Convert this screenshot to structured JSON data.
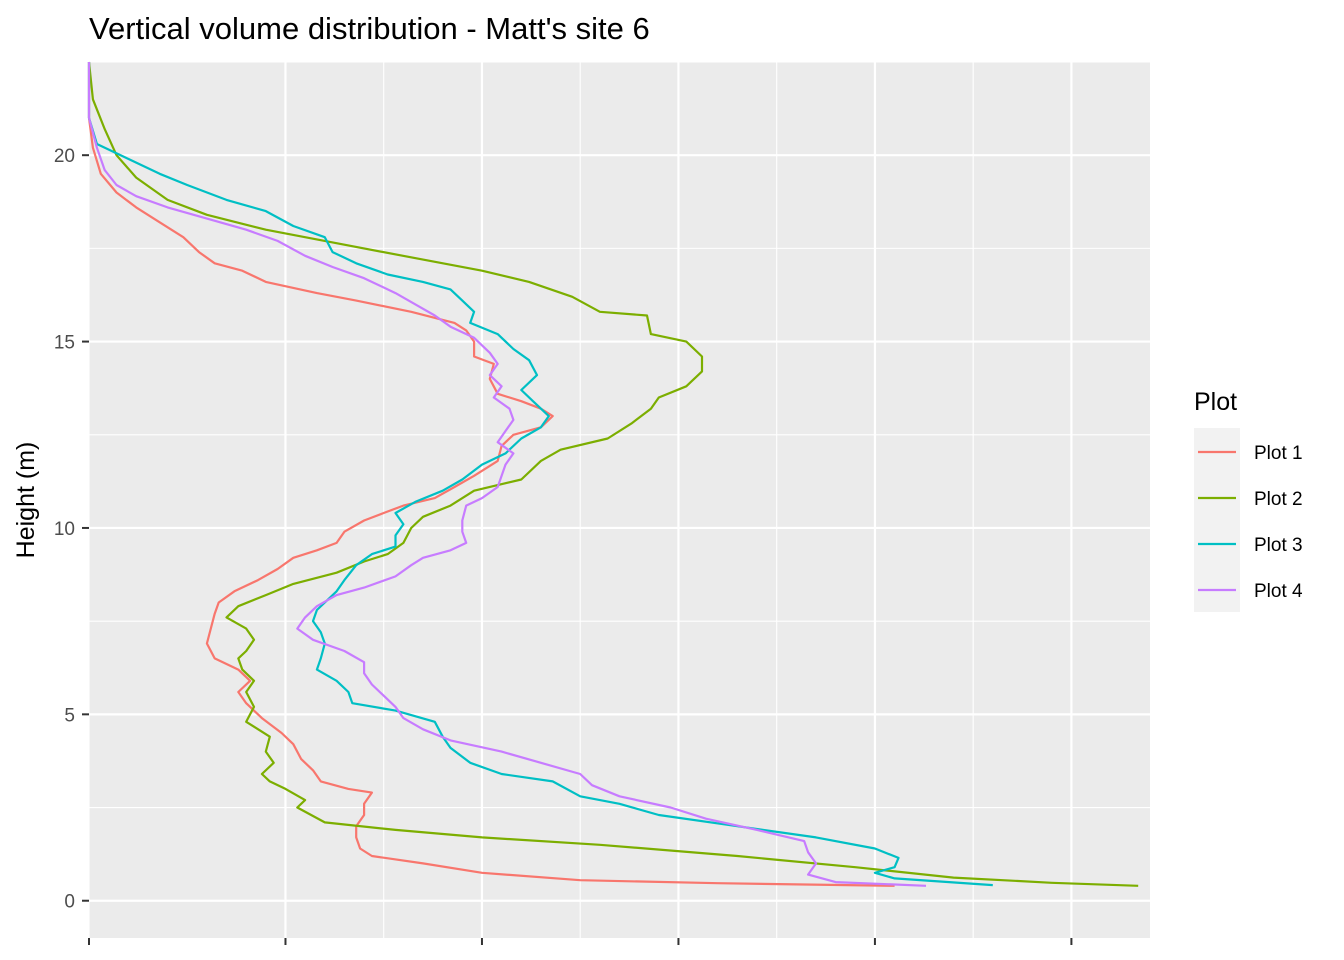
{
  "chart_data": {
    "type": "line",
    "orientation": "horizontal-profile",
    "title": "Vertical volume distribution - Matt's site 6",
    "xlabel": "",
    "ylabel": "Height (m)",
    "x_tick_labels_shown": false,
    "xlim": [
      0,
      0.027
    ],
    "ylim": [
      -1.0,
      22.5
    ],
    "y_ticks": [
      0,
      5,
      10,
      15,
      20
    ],
    "y_tick_labels": [
      "0",
      "5",
      "10",
      "15",
      "20"
    ],
    "x_grid_major": [
      0.005,
      0.01,
      0.015,
      0.02,
      0.025
    ],
    "x_grid_minor": [
      0.0,
      0.0075,
      0.0125,
      0.0175,
      0.0225
    ],
    "grid": true,
    "legend": {
      "title": "Plot",
      "placement": "right"
    },
    "series": [
      {
        "name": "Plot 1",
        "color": "#F8766D",
        "points": [
          [
            0.0,
            22.5
          ],
          [
            0.0,
            21.0
          ],
          [
            0.0001,
            20.2
          ],
          [
            0.0003,
            19.5
          ],
          [
            0.0007,
            19.0
          ],
          [
            0.0012,
            18.6
          ],
          [
            0.0018,
            18.2
          ],
          [
            0.0024,
            17.8
          ],
          [
            0.0028,
            17.4
          ],
          [
            0.0032,
            17.1
          ],
          [
            0.0039,
            16.9
          ],
          [
            0.0045,
            16.6
          ],
          [
            0.0058,
            16.3
          ],
          [
            0.0068,
            16.1
          ],
          [
            0.0082,
            15.8
          ],
          [
            0.0093,
            15.5
          ],
          [
            0.0096,
            15.3
          ],
          [
            0.0098,
            15.0
          ],
          [
            0.0098,
            14.6
          ],
          [
            0.0103,
            14.4
          ],
          [
            0.0102,
            14.0
          ],
          [
            0.0104,
            13.6
          ],
          [
            0.011,
            13.4
          ],
          [
            0.0115,
            13.2
          ],
          [
            0.0118,
            13.0
          ],
          [
            0.0115,
            12.7
          ],
          [
            0.0108,
            12.5
          ],
          [
            0.0105,
            12.2
          ],
          [
            0.0104,
            11.8
          ],
          [
            0.0098,
            11.4
          ],
          [
            0.0093,
            11.1
          ],
          [
            0.0088,
            10.8
          ],
          [
            0.008,
            10.6
          ],
          [
            0.0075,
            10.4
          ],
          [
            0.007,
            10.2
          ],
          [
            0.0065,
            9.9
          ],
          [
            0.0063,
            9.6
          ],
          [
            0.0058,
            9.4
          ],
          [
            0.0052,
            9.2
          ],
          [
            0.0048,
            8.9
          ],
          [
            0.0043,
            8.6
          ],
          [
            0.0037,
            8.3
          ],
          [
            0.0033,
            8.0
          ],
          [
            0.0032,
            7.7
          ],
          [
            0.0031,
            7.3
          ],
          [
            0.003,
            6.9
          ],
          [
            0.0032,
            6.5
          ],
          [
            0.0038,
            6.2
          ],
          [
            0.0041,
            5.9
          ],
          [
            0.0038,
            5.6
          ],
          [
            0.004,
            5.3
          ],
          [
            0.0044,
            4.9
          ],
          [
            0.0049,
            4.5
          ],
          [
            0.0052,
            4.2
          ],
          [
            0.0054,
            3.8
          ],
          [
            0.0057,
            3.5
          ],
          [
            0.0059,
            3.2
          ],
          [
            0.0066,
            3.0
          ],
          [
            0.0072,
            2.9
          ],
          [
            0.007,
            2.6
          ],
          [
            0.007,
            2.3
          ],
          [
            0.0068,
            2.0
          ],
          [
            0.0068,
            1.7
          ],
          [
            0.0069,
            1.4
          ],
          [
            0.0072,
            1.2
          ],
          [
            0.0085,
            1.0
          ],
          [
            0.01,
            0.75
          ],
          [
            0.0125,
            0.55
          ],
          [
            0.016,
            0.47
          ],
          [
            0.0205,
            0.4
          ]
        ]
      },
      {
        "name": "Plot 2",
        "color": "#7CAE00",
        "points": [
          [
            0.0,
            22.5
          ],
          [
            0.0001,
            21.5
          ],
          [
            0.0004,
            20.7
          ],
          [
            0.0007,
            20.0
          ],
          [
            0.0012,
            19.4
          ],
          [
            0.002,
            18.8
          ],
          [
            0.003,
            18.4
          ],
          [
            0.0045,
            18.0
          ],
          [
            0.0065,
            17.6
          ],
          [
            0.0085,
            17.2
          ],
          [
            0.01,
            16.9
          ],
          [
            0.0112,
            16.6
          ],
          [
            0.0123,
            16.2
          ],
          [
            0.013,
            15.8
          ],
          [
            0.0142,
            15.7
          ],
          [
            0.0143,
            15.2
          ],
          [
            0.0152,
            15.0
          ],
          [
            0.0156,
            14.6
          ],
          [
            0.0156,
            14.2
          ],
          [
            0.0152,
            13.8
          ],
          [
            0.0145,
            13.5
          ],
          [
            0.0143,
            13.2
          ],
          [
            0.0138,
            12.8
          ],
          [
            0.0132,
            12.4
          ],
          [
            0.012,
            12.1
          ],
          [
            0.0115,
            11.8
          ],
          [
            0.011,
            11.3
          ],
          [
            0.0098,
            11.0
          ],
          [
            0.0092,
            10.6
          ],
          [
            0.0085,
            10.3
          ],
          [
            0.0082,
            10.0
          ],
          [
            0.008,
            9.6
          ],
          [
            0.0076,
            9.3
          ],
          [
            0.007,
            9.1
          ],
          [
            0.0063,
            8.8
          ],
          [
            0.0052,
            8.5
          ],
          [
            0.0045,
            8.2
          ],
          [
            0.0038,
            7.9
          ],
          [
            0.0035,
            7.6
          ],
          [
            0.004,
            7.3
          ],
          [
            0.0042,
            7.0
          ],
          [
            0.004,
            6.7
          ],
          [
            0.0038,
            6.5
          ],
          [
            0.0039,
            6.2
          ],
          [
            0.0042,
            5.9
          ],
          [
            0.004,
            5.6
          ],
          [
            0.0042,
            5.2
          ],
          [
            0.004,
            4.8
          ],
          [
            0.0046,
            4.4
          ],
          [
            0.0045,
            4.0
          ],
          [
            0.0047,
            3.7
          ],
          [
            0.0044,
            3.4
          ],
          [
            0.0046,
            3.2
          ],
          [
            0.005,
            3.0
          ],
          [
            0.0055,
            2.7
          ],
          [
            0.0053,
            2.5
          ],
          [
            0.006,
            2.1
          ],
          [
            0.0078,
            1.9
          ],
          [
            0.01,
            1.7
          ],
          [
            0.013,
            1.5
          ],
          [
            0.0165,
            1.2
          ],
          [
            0.0195,
            0.9
          ],
          [
            0.022,
            0.62
          ],
          [
            0.0245,
            0.48
          ],
          [
            0.0267,
            0.4
          ]
        ]
      },
      {
        "name": "Plot 3",
        "color": "#00BFC4",
        "points": [
          [
            0.0,
            22.5
          ],
          [
            0.0,
            21.0
          ],
          [
            0.0002,
            20.3
          ],
          [
            0.001,
            19.9
          ],
          [
            0.0018,
            19.5
          ],
          [
            0.0025,
            19.2
          ],
          [
            0.0035,
            18.8
          ],
          [
            0.0045,
            18.5
          ],
          [
            0.0052,
            18.1
          ],
          [
            0.006,
            17.8
          ],
          [
            0.0062,
            17.4
          ],
          [
            0.0068,
            17.1
          ],
          [
            0.0076,
            16.8
          ],
          [
            0.0085,
            16.6
          ],
          [
            0.0092,
            16.4
          ],
          [
            0.0095,
            16.1
          ],
          [
            0.0098,
            15.8
          ],
          [
            0.0097,
            15.5
          ],
          [
            0.0104,
            15.2
          ],
          [
            0.0108,
            14.8
          ],
          [
            0.0112,
            14.5
          ],
          [
            0.0114,
            14.1
          ],
          [
            0.011,
            13.7
          ],
          [
            0.0113,
            13.4
          ],
          [
            0.0117,
            13.0
          ],
          [
            0.0115,
            12.7
          ],
          [
            0.011,
            12.4
          ],
          [
            0.0106,
            12.0
          ],
          [
            0.01,
            11.7
          ],
          [
            0.0095,
            11.3
          ],
          [
            0.009,
            11.0
          ],
          [
            0.0083,
            10.7
          ],
          [
            0.0078,
            10.4
          ],
          [
            0.008,
            10.1
          ],
          [
            0.0078,
            9.8
          ],
          [
            0.0078,
            9.5
          ],
          [
            0.0072,
            9.3
          ],
          [
            0.0068,
            9.0
          ],
          [
            0.0065,
            8.6
          ],
          [
            0.0063,
            8.3
          ],
          [
            0.006,
            8.0
          ],
          [
            0.0058,
            7.8
          ],
          [
            0.0057,
            7.5
          ],
          [
            0.0059,
            7.2
          ],
          [
            0.006,
            6.9
          ],
          [
            0.0059,
            6.5
          ],
          [
            0.0058,
            6.2
          ],
          [
            0.0063,
            5.9
          ],
          [
            0.0066,
            5.6
          ],
          [
            0.0067,
            5.3
          ],
          [
            0.0078,
            5.1
          ],
          [
            0.0088,
            4.8
          ],
          [
            0.009,
            4.4
          ],
          [
            0.0092,
            4.1
          ],
          [
            0.0097,
            3.7
          ],
          [
            0.0105,
            3.4
          ],
          [
            0.0118,
            3.2
          ],
          [
            0.0125,
            2.8
          ],
          [
            0.0135,
            2.6
          ],
          [
            0.0145,
            2.3
          ],
          [
            0.0165,
            2.0
          ],
          [
            0.0185,
            1.7
          ],
          [
            0.02,
            1.4
          ],
          [
            0.0206,
            1.15
          ],
          [
            0.0205,
            0.9
          ],
          [
            0.02,
            0.75
          ],
          [
            0.0205,
            0.6
          ],
          [
            0.023,
            0.42
          ]
        ]
      },
      {
        "name": "Plot 4",
        "color": "#C77CFF",
        "points": [
          [
            0.0,
            22.5
          ],
          [
            0.0,
            21.0
          ],
          [
            0.0002,
            20.2
          ],
          [
            0.0004,
            19.6
          ],
          [
            0.0007,
            19.2
          ],
          [
            0.0012,
            18.9
          ],
          [
            0.002,
            18.6
          ],
          [
            0.003,
            18.3
          ],
          [
            0.004,
            18.0
          ],
          [
            0.0048,
            17.7
          ],
          [
            0.0055,
            17.3
          ],
          [
            0.0062,
            17.0
          ],
          [
            0.007,
            16.7
          ],
          [
            0.0078,
            16.3
          ],
          [
            0.0083,
            16.0
          ],
          [
            0.0088,
            15.7
          ],
          [
            0.0092,
            15.4
          ],
          [
            0.0098,
            15.1
          ],
          [
            0.0102,
            14.7
          ],
          [
            0.0104,
            14.4
          ],
          [
            0.0102,
            14.1
          ],
          [
            0.0105,
            13.8
          ],
          [
            0.0103,
            13.5
          ],
          [
            0.0107,
            13.2
          ],
          [
            0.0108,
            12.9
          ],
          [
            0.0106,
            12.6
          ],
          [
            0.0104,
            12.3
          ],
          [
            0.0108,
            12.0
          ],
          [
            0.0106,
            11.7
          ],
          [
            0.0105,
            11.4
          ],
          [
            0.0104,
            11.1
          ],
          [
            0.01,
            10.8
          ],
          [
            0.0096,
            10.6
          ],
          [
            0.0095,
            10.2
          ],
          [
            0.0095,
            9.9
          ],
          [
            0.0096,
            9.6
          ],
          [
            0.0092,
            9.4
          ],
          [
            0.0085,
            9.2
          ],
          [
            0.0082,
            9.0
          ],
          [
            0.0078,
            8.7
          ],
          [
            0.007,
            8.4
          ],
          [
            0.0063,
            8.2
          ],
          [
            0.0058,
            7.9
          ],
          [
            0.0055,
            7.6
          ],
          [
            0.0053,
            7.3
          ],
          [
            0.0057,
            7.0
          ],
          [
            0.0065,
            6.7
          ],
          [
            0.007,
            6.4
          ],
          [
            0.007,
            6.1
          ],
          [
            0.0072,
            5.8
          ],
          [
            0.0075,
            5.5
          ],
          [
            0.0078,
            5.2
          ],
          [
            0.008,
            4.9
          ],
          [
            0.0085,
            4.6
          ],
          [
            0.0092,
            4.3
          ],
          [
            0.0105,
            4.0
          ],
          [
            0.0115,
            3.7
          ],
          [
            0.0125,
            3.4
          ],
          [
            0.0128,
            3.1
          ],
          [
            0.0135,
            2.8
          ],
          [
            0.0148,
            2.5
          ],
          [
            0.0157,
            2.2
          ],
          [
            0.017,
            1.9
          ],
          [
            0.0182,
            1.6
          ],
          [
            0.0183,
            1.3
          ],
          [
            0.0185,
            1.0
          ],
          [
            0.0183,
            0.7
          ],
          [
            0.019,
            0.5
          ],
          [
            0.0213,
            0.4
          ]
        ]
      }
    ]
  }
}
